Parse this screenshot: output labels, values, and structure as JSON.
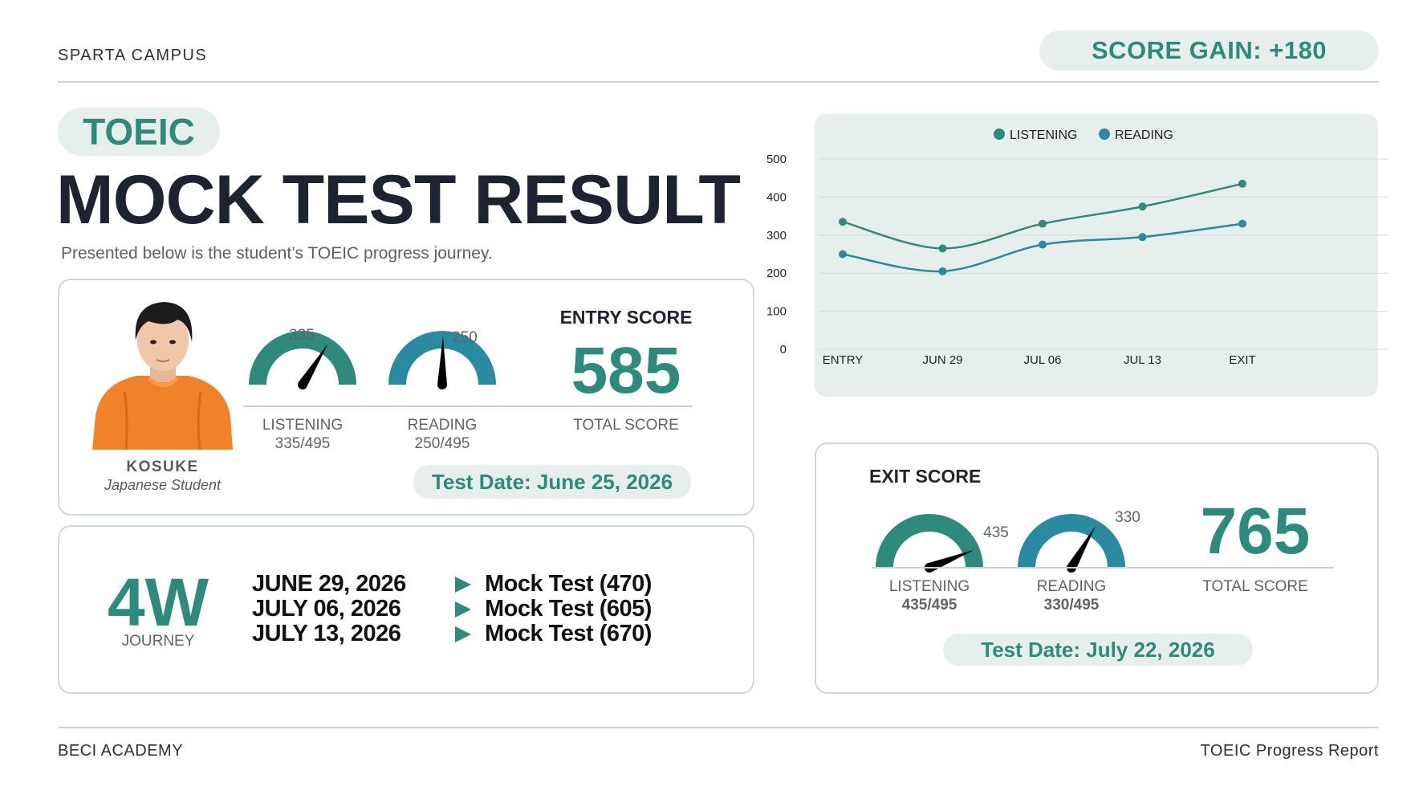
{
  "header": {
    "campus": "SPARTA CAMPUS",
    "score_gain": "SCORE GAIN: +180"
  },
  "title": {
    "tag": "TOEIC",
    "main": "MOCK TEST RESULT",
    "subtitle": "Presented below is the student’s TOEIC progress journey."
  },
  "student": {
    "name": "KOSUKE",
    "description": "Japanese Student"
  },
  "entry": {
    "heading": "ENTRY SCORE",
    "listening_value": "335",
    "listening_label": "LISTENING",
    "listening_fraction": "335/495",
    "listening_score": 335,
    "reading_value": "250",
    "reading_label": "READING",
    "reading_fraction": "250/495",
    "reading_score": 250,
    "total": "585",
    "total_label": "TOTAL SCORE",
    "test_date": "Test Date: June 25, 2026"
  },
  "journey": {
    "duration": "4W",
    "label": "JOURNEY",
    "rows": [
      {
        "date": "JUNE 29, 2026",
        "test": "Mock Test (470)"
      },
      {
        "date": "JULY 06, 2026",
        "test": "Mock Test (605)"
      },
      {
        "date": "JULY 13, 2026",
        "test": "Mock Test (670)"
      }
    ]
  },
  "exit": {
    "heading": "EXIT SCORE",
    "listening_value": "435",
    "listening_label": "LISTENING",
    "listening_fraction": "435/495",
    "listening_score": 435,
    "reading_value": "330",
    "reading_label": "READING",
    "reading_fraction": "330/495",
    "reading_score": 330,
    "total": "765",
    "total_label": "TOTAL SCORE",
    "test_date": "Test Date: July 22, 2026"
  },
  "gauge_max": 495,
  "colors": {
    "accent": "#2e8b7b",
    "reading": "#2a8aa0",
    "pill_bg": "#e6efec",
    "chart_bg": "#e6efec"
  },
  "chart_data": {
    "type": "line",
    "categories": [
      "ENTRY",
      "JUN 29",
      "JUL 06",
      "JUL 13",
      "EXIT"
    ],
    "series": [
      {
        "name": "LISTENING",
        "values": [
          335,
          265,
          330,
          375,
          435
        ],
        "color": "#2e8b7b"
      },
      {
        "name": "READING",
        "values": [
          250,
          205,
          275,
          295,
          330
        ],
        "color": "#2a8aa0"
      }
    ],
    "ylim": [
      0,
      500
    ],
    "yticks": [
      "0",
      "100",
      "200",
      "300",
      "400",
      "500"
    ],
    "grid": true,
    "legend": "top-center"
  },
  "footer": {
    "left": "BECI ACADEMY",
    "right": "TOEIC Progress Report"
  }
}
